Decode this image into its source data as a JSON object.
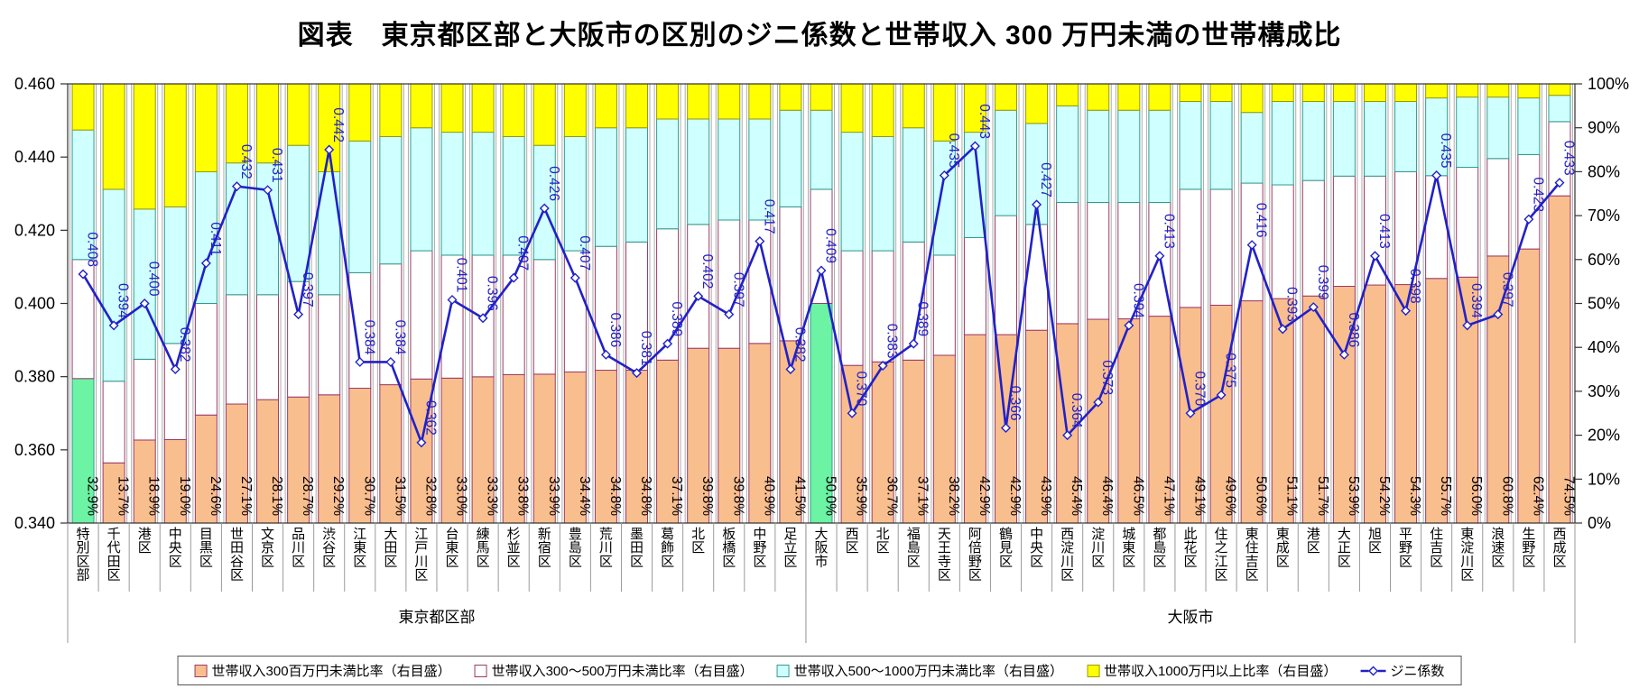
{
  "title": "図表　東京都区部と大阪市の区別のジニ係数と世帯収入 300 万円未満の世帯構成比",
  "chart_data": {
    "type": "bar",
    "subtype": "stacked-bar-with-line-combo",
    "categories": [
      "特別区部",
      "千代田区",
      "港区",
      "中央区",
      "目黒区",
      "世田谷区",
      "文京区",
      "品川区",
      "渋谷区",
      "江東区",
      "大田区",
      "江戸川区",
      "台東区",
      "練馬区",
      "杉並区",
      "新宿区",
      "豊島区",
      "荒川区",
      "墨田区",
      "葛飾区",
      "北区",
      "板橋区",
      "中野区",
      "足立区",
      "大阪市",
      "西区",
      "北区",
      "福島区",
      "天王寺区",
      "阿倍野区",
      "鶴見区",
      "中央区",
      "西淀川区",
      "淀川区",
      "城東区",
      "都島区",
      "此花区",
      "住之江区",
      "東住吉区",
      "東成区",
      "港区",
      "大正区",
      "旭区",
      "平野区",
      "住吉区",
      "東淀川区",
      "浪速区",
      "生野区",
      "西成区"
    ],
    "groups": [
      {
        "label": "東京都区部",
        "from": 0,
        "to": 23
      },
      {
        "label": "大阪市",
        "from": 24,
        "to": 48
      }
    ],
    "total_indices": [
      0,
      24
    ],
    "series": [
      {
        "name": "世帯収入300百万円未満比率（右目盛）",
        "type": "bar",
        "labeled": true,
        "fill": "#F9BE8E",
        "stroke": "#9A3B67",
        "values": [
          32.9,
          13.7,
          18.9,
          19.0,
          24.6,
          27.1,
          28.1,
          28.7,
          29.2,
          30.7,
          31.5,
          32.8,
          33.0,
          33.3,
          33.8,
          33.9,
          34.4,
          34.8,
          34.8,
          37.1,
          39.8,
          39.8,
          40.9,
          41.5,
          50.0,
          35.9,
          36.7,
          37.1,
          38.2,
          42.9,
          42.9,
          43.9,
          45.4,
          46.4,
          46.5,
          47.1,
          49.1,
          49.6,
          50.6,
          51.1,
          51.7,
          53.9,
          54.2,
          54.3,
          55.7,
          56.0,
          60.8,
          62.4,
          74.5
        ]
      },
      {
        "name": "世帯収入300～500万円未満比率（右目盛）",
        "type": "bar",
        "labeled": false,
        "fill": "#FFFFFF",
        "stroke": "#9A3B67",
        "estimated": true,
        "values": [
          27.1,
          18.6,
          18.4,
          21.9,
          25.4,
          24.9,
          23.9,
          26.3,
          22.8,
          26.3,
          27.5,
          29.2,
          28.0,
          27.7,
          27.2,
          26.1,
          27.6,
          28.2,
          29.2,
          29.9,
          28.2,
          29.2,
          28.1,
          30.5,
          26.0,
          26.1,
          25.3,
          26.9,
          22.8,
          22.1,
          27.1,
          24.1,
          27.6,
          26.6,
          26.5,
          25.9,
          26.9,
          26.4,
          26.8,
          25.9,
          26.3,
          25.1,
          24.8,
          25.7,
          23.4,
          25.0,
          22.2,
          21.5,
          16.9
        ]
      },
      {
        "name": "世帯収入500～1000万円未満比率（右目盛）",
        "type": "bar",
        "labeled": false,
        "fill": "#CFFFFF",
        "stroke": "#2E9E8E",
        "estimated": true,
        "values": [
          29.5,
          43.7,
          34.2,
          31.1,
          30.0,
          30.0,
          30.0,
          31.0,
          28.0,
          30.0,
          29.0,
          28.0,
          28.0,
          28.0,
          27.0,
          26.0,
          26.0,
          27.0,
          26.0,
          25.0,
          24.0,
          23.0,
          23.0,
          22.0,
          18.0,
          27.0,
          26.0,
          26.0,
          26.0,
          24.0,
          24.0,
          23.0,
          22.0,
          21.0,
          21.0,
          21.0,
          20.0,
          20.0,
          16.1,
          19.0,
          18.0,
          17.0,
          17.0,
          16.0,
          17.7,
          16.0,
          14.0,
          12.9,
          6.0
        ]
      },
      {
        "name": "世帯収入1000万円以上比率（右目盛）",
        "type": "bar",
        "labeled": false,
        "fill": "#FFFF00",
        "stroke": "#9A9A00",
        "estimated": true,
        "values": [
          10.5,
          24.0,
          28.5,
          28.0,
          20.0,
          18.0,
          18.0,
          14.0,
          20.0,
          13.0,
          12.0,
          10.0,
          11.0,
          11.0,
          12.0,
          14.0,
          12.0,
          10.0,
          10.0,
          8.0,
          8.0,
          8.0,
          8.0,
          6.0,
          6.0,
          11.0,
          12.0,
          10.0,
          13.0,
          11.0,
          6.0,
          9.0,
          5.0,
          6.0,
          6.0,
          6.0,
          4.0,
          4.0,
          6.5,
          4.0,
          4.0,
          4.0,
          4.0,
          4.0,
          3.2,
          3.0,
          3.0,
          3.2,
          2.6
        ]
      },
      {
        "name": "ジニ係数",
        "type": "line",
        "labeled": true,
        "stroke": "#2121C8",
        "values": [
          0.408,
          0.394,
          0.4,
          0.382,
          0.411,
          0.432,
          0.431,
          0.397,
          0.442,
          0.384,
          0.384,
          0.362,
          0.401,
          0.396,
          0.407,
          0.426,
          0.407,
          0.386,
          0.381,
          0.389,
          0.402,
          0.397,
          0.417,
          0.382,
          0.409,
          0.37,
          0.383,
          0.389,
          0.435,
          0.443,
          0.366,
          0.427,
          0.364,
          0.373,
          0.394,
          0.413,
          0.37,
          0.375,
          0.416,
          0.393,
          0.399,
          0.386,
          0.413,
          0.398,
          0.435,
          0.394,
          0.397,
          0.423,
          0.433
        ]
      }
    ],
    "gini_axis": {
      "min": 0.34,
      "max": 0.46,
      "tick_labels": [
        "0.460",
        "0.440",
        "0.420",
        "0.400",
        "0.380",
        "0.360",
        "0.340"
      ]
    },
    "pct_axis": {
      "min": 0,
      "max": 100,
      "tick_labels": [
        "100%",
        "90%",
        "80%",
        "70%",
        "60%",
        "50%",
        "40%",
        "30%",
        "20%",
        "10%",
        "0%"
      ]
    },
    "total_bar_fill": "#6CF3A3",
    "total_bar_stroke": "#2E9E8E",
    "grid": "category-guide-lines",
    "legend_position": "bottom"
  },
  "legend": {
    "items": [
      {
        "label": "世帯収入300百万円未満比率（右目盛）",
        "swatch": "orange"
      },
      {
        "label": "世帯収入300～500万円未満比率（右目盛）",
        "swatch": "white"
      },
      {
        "label": "世帯収入500～1000万円未満比率（右目盛）",
        "swatch": "cyan"
      },
      {
        "label": "世帯収入1000万円以上比率（右目盛）",
        "swatch": "yellow"
      },
      {
        "label": "ジニ係数",
        "swatch": "line"
      }
    ]
  }
}
